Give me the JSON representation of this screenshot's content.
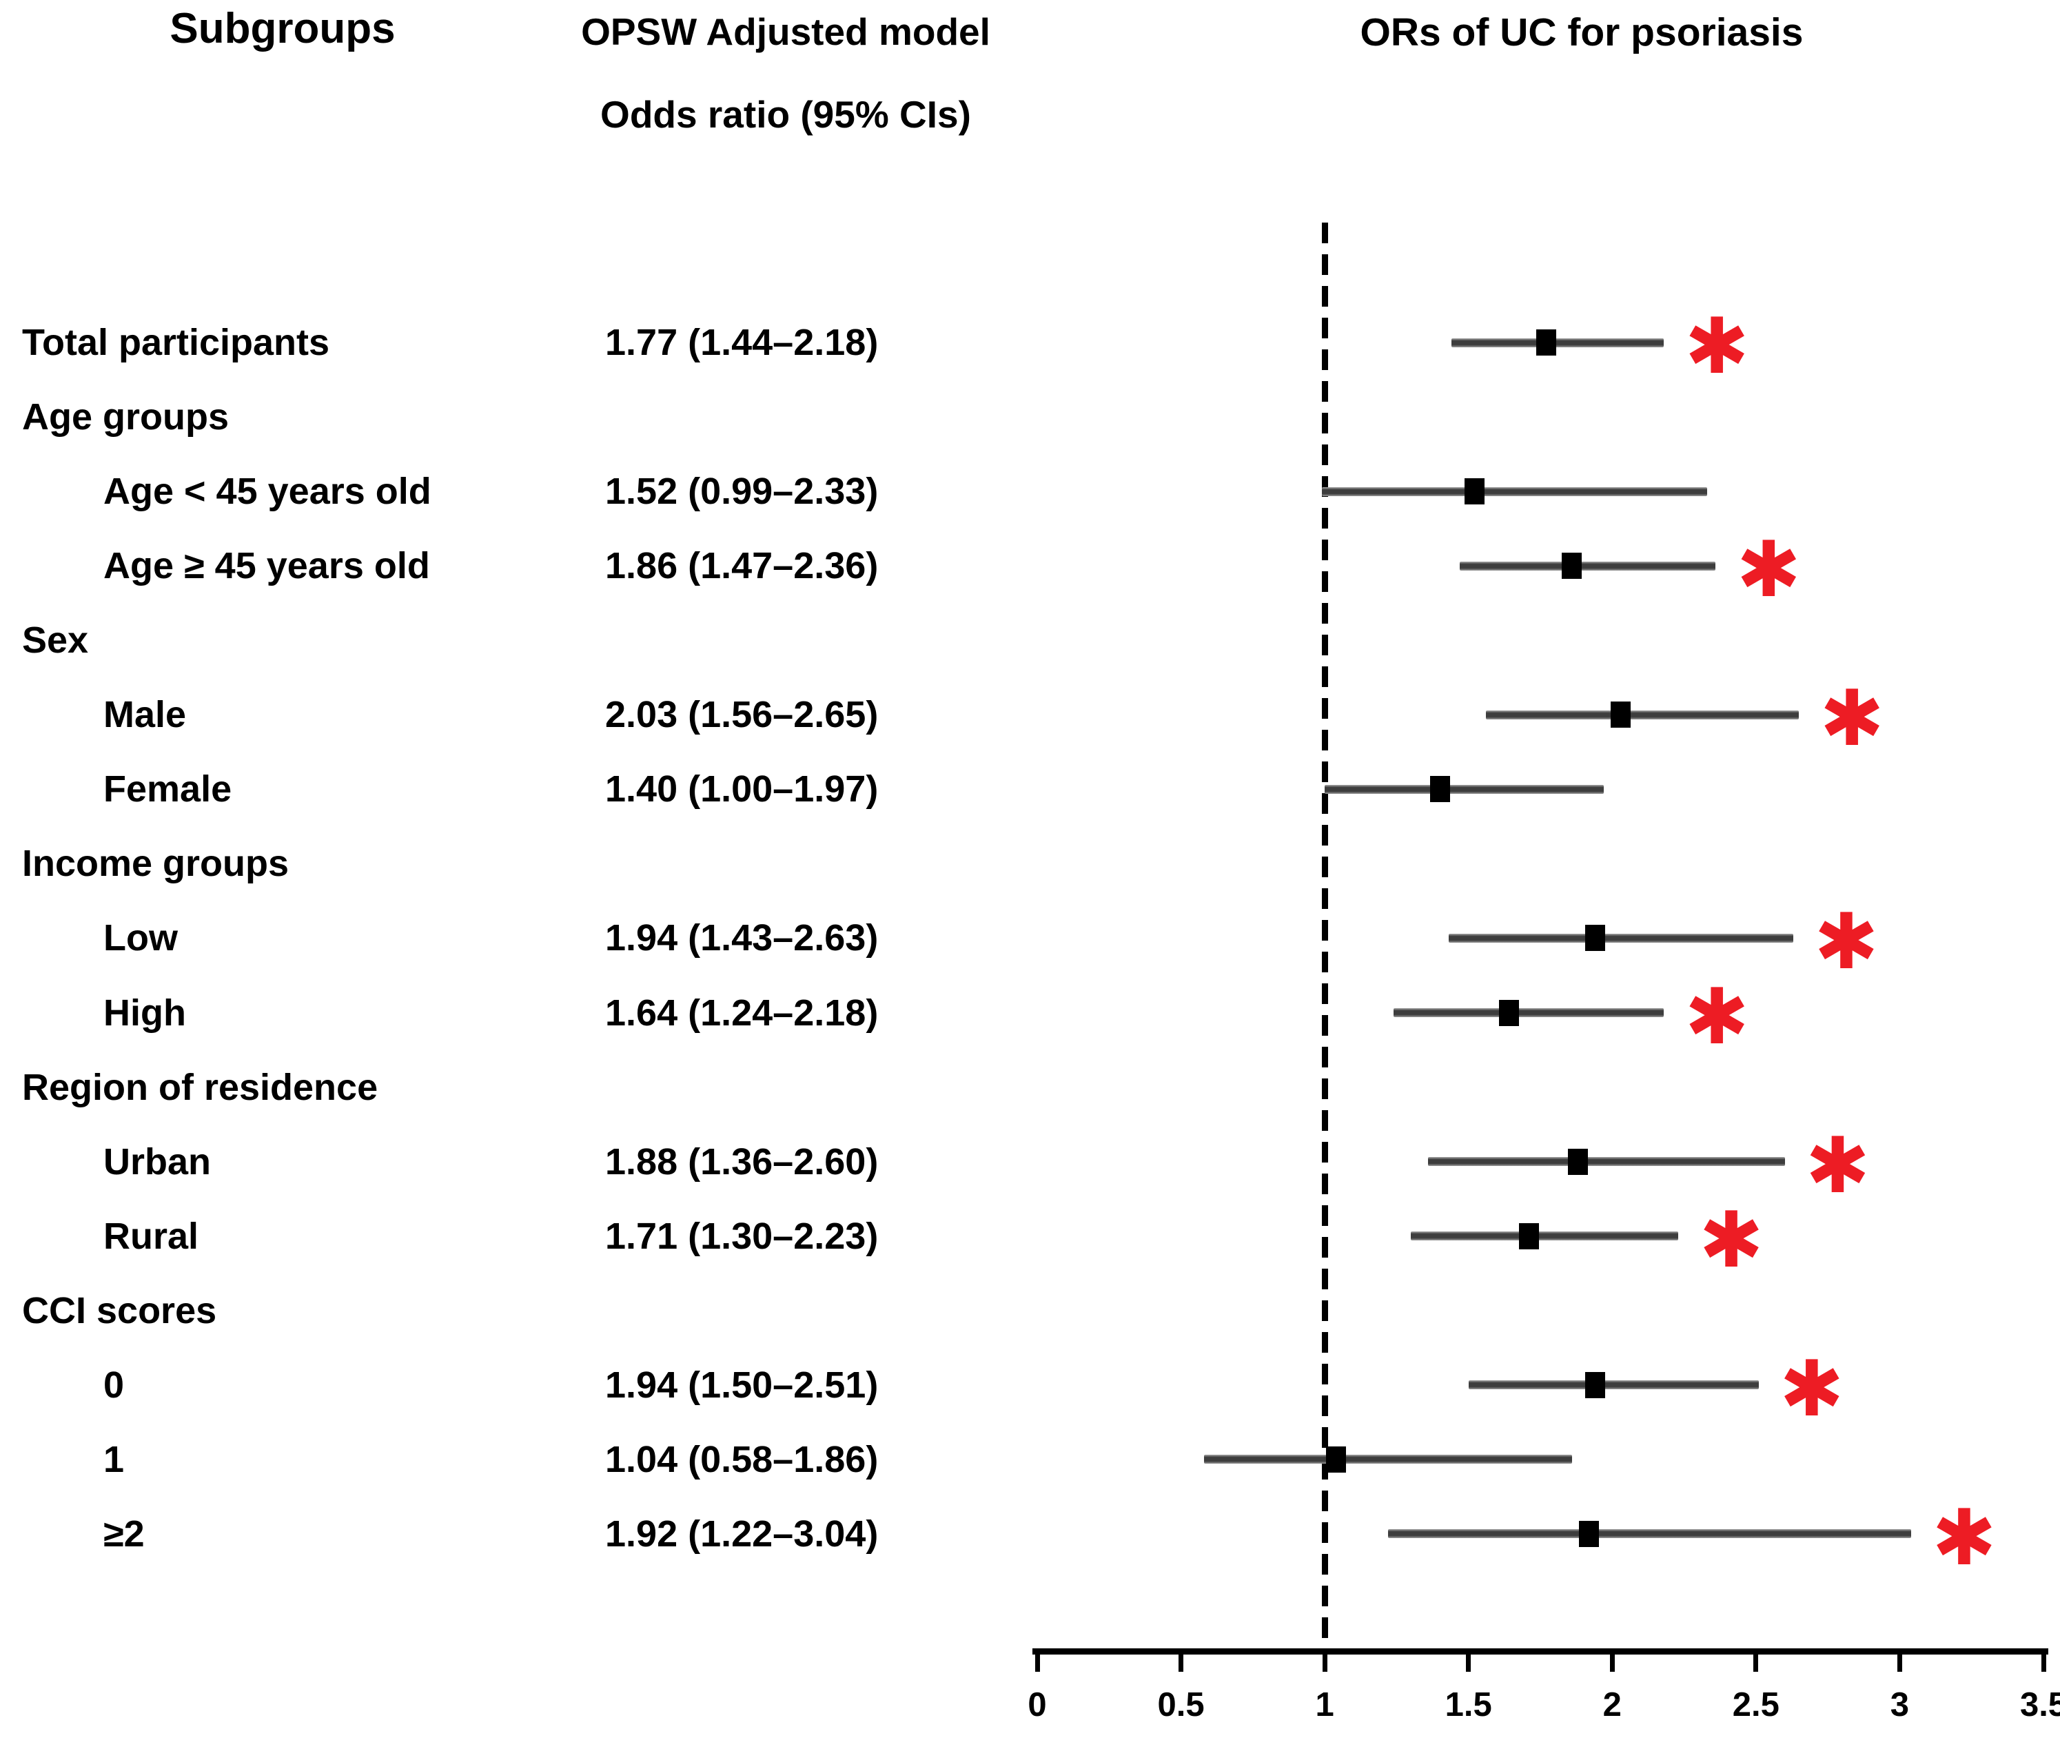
{
  "header": {
    "subgroups_title": "Subgroups",
    "model_title_line1": "OPSW Adjusted model",
    "model_title_line2": "Odds ratio (95% CIs)",
    "plot_title": "ORs of UC for psoriasis"
  },
  "colors": {
    "asterisk": "#ed1c24",
    "ci_bar": "#3d3d3d",
    "marker": "#000000",
    "text": "#000000"
  },
  "axis": {
    "min": 0,
    "max": 3.5,
    "tick_labels": [
      "0",
      "0.5",
      "1",
      "1.5",
      "2",
      "2.5",
      "3",
      "3.5"
    ],
    "tick_values": [
      0,
      0.5,
      1,
      1.5,
      2,
      2.5,
      3,
      3.5
    ],
    "reference_line_value": 1
  },
  "rows": [
    {
      "label": "Total participants",
      "indent": false,
      "group_header": false,
      "or_text": "1.77 (1.44–2.18)",
      "or": 1.77,
      "lo": 1.44,
      "hi": 2.18,
      "significant": true
    },
    {
      "label": "Age groups",
      "indent": false,
      "group_header": true
    },
    {
      "label": "Age < 45 years old",
      "indent": true,
      "group_header": false,
      "or_text": "1.52 (0.99–2.33)",
      "or": 1.52,
      "lo": 0.99,
      "hi": 2.33,
      "significant": false
    },
    {
      "label": "Age ≥ 45 years old",
      "indent": true,
      "group_header": false,
      "or_text": "1.86 (1.47–2.36)",
      "or": 1.86,
      "lo": 1.47,
      "hi": 2.36,
      "significant": true
    },
    {
      "label": "Sex",
      "indent": false,
      "group_header": true
    },
    {
      "label": "Male",
      "indent": true,
      "group_header": false,
      "or_text": "2.03 (1.56–2.65)",
      "or": 2.03,
      "lo": 1.56,
      "hi": 2.65,
      "significant": true
    },
    {
      "label": "Female",
      "indent": true,
      "group_header": false,
      "or_text": "1.40 (1.00–1.97)",
      "or": 1.4,
      "lo": 1.0,
      "hi": 1.97,
      "significant": false
    },
    {
      "label": "Income groups",
      "indent": false,
      "group_header": true
    },
    {
      "label": "Low",
      "indent": true,
      "group_header": false,
      "or_text": "1.94 (1.43–2.63)",
      "or": 1.94,
      "lo": 1.43,
      "hi": 2.63,
      "significant": true
    },
    {
      "label": "High",
      "indent": true,
      "group_header": false,
      "or_text": "1.64 (1.24–2.18)",
      "or": 1.64,
      "lo": 1.24,
      "hi": 2.18,
      "significant": true
    },
    {
      "label": "Region of residence",
      "indent": false,
      "group_header": true
    },
    {
      "label": "Urban",
      "indent": true,
      "group_header": false,
      "or_text": "1.88 (1.36–2.60)",
      "or": 1.88,
      "lo": 1.36,
      "hi": 2.6,
      "significant": true
    },
    {
      "label": "Rural",
      "indent": true,
      "group_header": false,
      "or_text": "1.71 (1.30–2.23)",
      "or": 1.71,
      "lo": 1.3,
      "hi": 2.23,
      "significant": true
    },
    {
      "label": "CCI scores",
      "indent": false,
      "group_header": true
    },
    {
      "label": "0",
      "indent": true,
      "group_header": false,
      "or_text": "1.94 (1.50–2.51)",
      "or": 1.94,
      "lo": 1.5,
      "hi": 2.51,
      "significant": true
    },
    {
      "label": "1",
      "indent": true,
      "group_header": false,
      "or_text": "1.04 (0.58–1.86)",
      "or": 1.04,
      "lo": 0.58,
      "hi": 1.86,
      "significant": false
    },
    {
      "label": "≥2",
      "indent": true,
      "group_header": false,
      "or_text": "1.92 (1.22–3.04)",
      "or": 1.92,
      "lo": 1.22,
      "hi": 3.04,
      "significant": true
    }
  ],
  "significance_symbol": "✱",
  "chart_data": {
    "type": "scatter",
    "subtype": "forest-plot",
    "title": "ORs of UC for psoriasis",
    "xlabel": "",
    "ylabel": "",
    "xlim": [
      0,
      3.5
    ],
    "x_ticks": [
      0,
      0.5,
      1,
      1.5,
      2,
      2.5,
      3,
      3.5
    ],
    "reference_line_x": 1,
    "grid": false,
    "legend": "none",
    "series": [
      {
        "name": "OPSW Adjusted model Odds ratio (95% CIs)",
        "categories": [
          "Total participants",
          "Age < 45 years old",
          "Age ≥ 45 years old",
          "Male",
          "Female",
          "Low income",
          "High income",
          "Urban",
          "Rural",
          "CCI score 0",
          "CCI score 1",
          "CCI score ≥2"
        ],
        "or": [
          1.77,
          1.52,
          1.86,
          2.03,
          1.4,
          1.94,
          1.64,
          1.88,
          1.71,
          1.94,
          1.04,
          1.92
        ],
        "ci_low": [
          1.44,
          0.99,
          1.47,
          1.56,
          1.0,
          1.43,
          1.24,
          1.36,
          1.3,
          1.5,
          0.58,
          1.22
        ],
        "ci_high": [
          2.18,
          2.33,
          2.36,
          2.65,
          1.97,
          2.63,
          2.18,
          2.6,
          2.23,
          2.51,
          1.86,
          3.04
        ],
        "significant": [
          true,
          false,
          true,
          true,
          false,
          true,
          true,
          true,
          true,
          true,
          false,
          true
        ]
      }
    ]
  }
}
